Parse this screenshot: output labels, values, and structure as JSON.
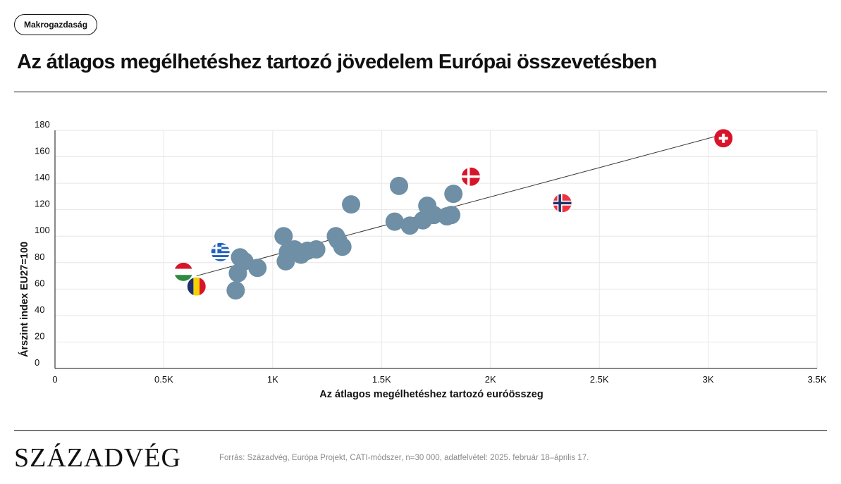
{
  "header": {
    "category": "Makrogazdaság",
    "title": "Az átlagos megélhetéshez tartozó jövedelem Európai összevetésben"
  },
  "footer": {
    "logo_text": "SZÁZADVÉG",
    "source": "Forrás: Századvég, Európa Projekt, CATI-módszer, n=30 000, adatfelvétel: 2025. február 18–április 17."
  },
  "colors": {
    "point": "#6e8fa5",
    "trend_line": "#333333",
    "grid": "#e6e6e6",
    "axis": "#111111",
    "flag_red": "#d8142a",
    "flag_navy": "#1f2f6b",
    "flag_blue": "#1f5fbf",
    "flag_green": "#2e8a3e",
    "flag_yellow": "#f5d000"
  },
  "chart_data": {
    "type": "scatter",
    "title": "",
    "xlabel": "Az átlagos megélhetéshez tartozó euróösszeg",
    "ylabel": "Árszint index EU27=100",
    "xlim": [
      0,
      3500
    ],
    "ylim": [
      0,
      180
    ],
    "x_ticks": [
      {
        "value": 0,
        "label": "0"
      },
      {
        "value": 500,
        "label": "0.5K"
      },
      {
        "value": 1000,
        "label": "1K"
      },
      {
        "value": 1500,
        "label": "1.5K"
      },
      {
        "value": 2000,
        "label": "2K"
      },
      {
        "value": 2500,
        "label": "2.5K"
      },
      {
        "value": 3000,
        "label": "3K"
      },
      {
        "value": 3500,
        "label": "3.5K"
      }
    ],
    "y_ticks": [
      {
        "value": 0,
        "label": "0"
      },
      {
        "value": 20,
        "label": "20"
      },
      {
        "value": 40,
        "label": "40"
      },
      {
        "value": 60,
        "label": "60"
      },
      {
        "value": 80,
        "label": "80"
      },
      {
        "value": 100,
        "label": "100"
      },
      {
        "value": 120,
        "label": "120"
      },
      {
        "value": 140,
        "label": "140"
      },
      {
        "value": 160,
        "label": "160"
      },
      {
        "value": 180,
        "label": "180"
      }
    ],
    "grid": true,
    "trend_line": {
      "x": [
        650,
        3070
      ],
      "y": [
        70,
        177
      ]
    },
    "points": [
      {
        "x": 590,
        "y": 73,
        "flag": "hungary-flag"
      },
      {
        "x": 650,
        "y": 62,
        "flag": "romania-flag"
      },
      {
        "x": 760,
        "y": 88,
        "flag": "greece-flag"
      },
      {
        "x": 830,
        "y": 59
      },
      {
        "x": 840,
        "y": 72
      },
      {
        "x": 850,
        "y": 84
      },
      {
        "x": 870,
        "y": 81
      },
      {
        "x": 930,
        "y": 76
      },
      {
        "x": 1050,
        "y": 100
      },
      {
        "x": 1060,
        "y": 81
      },
      {
        "x": 1070,
        "y": 88
      },
      {
        "x": 1100,
        "y": 90
      },
      {
        "x": 1130,
        "y": 86
      },
      {
        "x": 1160,
        "y": 89
      },
      {
        "x": 1200,
        "y": 90
      },
      {
        "x": 1290,
        "y": 100
      },
      {
        "x": 1300,
        "y": 97
      },
      {
        "x": 1320,
        "y": 92
      },
      {
        "x": 1360,
        "y": 124
      },
      {
        "x": 1560,
        "y": 111
      },
      {
        "x": 1580,
        "y": 138
      },
      {
        "x": 1630,
        "y": 108
      },
      {
        "x": 1690,
        "y": 112
      },
      {
        "x": 1710,
        "y": 123
      },
      {
        "x": 1740,
        "y": 116
      },
      {
        "x": 1800,
        "y": 115
      },
      {
        "x": 1820,
        "y": 116
      },
      {
        "x": 1830,
        "y": 132
      },
      {
        "x": 1910,
        "y": 145,
        "flag": "denmark-flag"
      },
      {
        "x": 2330,
        "y": 125,
        "flag": "norway-flag"
      },
      {
        "x": 3070,
        "y": 174,
        "flag": "switzerland-flag"
      }
    ]
  }
}
